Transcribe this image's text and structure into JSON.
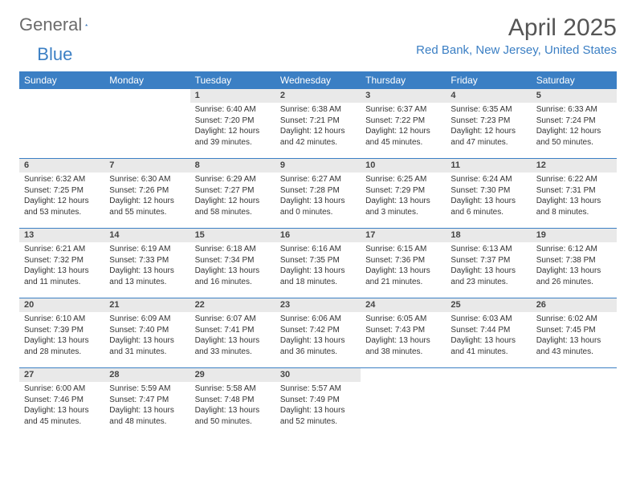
{
  "brand": {
    "word1": "General",
    "word2": "Blue"
  },
  "title": "April 2025",
  "location": "Red Bank, New Jersey, United States",
  "colors": {
    "header_bg": "#3b7fc4",
    "header_text": "#ffffff",
    "daynum_bg": "#e9e9e9",
    "week_border": "#3b7fc4",
    "title_color": "#555555",
    "location_color": "#3b7fc4",
    "body_text": "#333333"
  },
  "days_of_week": [
    "Sunday",
    "Monday",
    "Tuesday",
    "Wednesday",
    "Thursday",
    "Friday",
    "Saturday"
  ],
  "weeks": [
    [
      {
        "num": "",
        "sunrise": "",
        "sunset": "",
        "daylight": ""
      },
      {
        "num": "",
        "sunrise": "",
        "sunset": "",
        "daylight": ""
      },
      {
        "num": "1",
        "sunrise": "Sunrise: 6:40 AM",
        "sunset": "Sunset: 7:20 PM",
        "daylight": "Daylight: 12 hours and 39 minutes."
      },
      {
        "num": "2",
        "sunrise": "Sunrise: 6:38 AM",
        "sunset": "Sunset: 7:21 PM",
        "daylight": "Daylight: 12 hours and 42 minutes."
      },
      {
        "num": "3",
        "sunrise": "Sunrise: 6:37 AM",
        "sunset": "Sunset: 7:22 PM",
        "daylight": "Daylight: 12 hours and 45 minutes."
      },
      {
        "num": "4",
        "sunrise": "Sunrise: 6:35 AM",
        "sunset": "Sunset: 7:23 PM",
        "daylight": "Daylight: 12 hours and 47 minutes."
      },
      {
        "num": "5",
        "sunrise": "Sunrise: 6:33 AM",
        "sunset": "Sunset: 7:24 PM",
        "daylight": "Daylight: 12 hours and 50 minutes."
      }
    ],
    [
      {
        "num": "6",
        "sunrise": "Sunrise: 6:32 AM",
        "sunset": "Sunset: 7:25 PM",
        "daylight": "Daylight: 12 hours and 53 minutes."
      },
      {
        "num": "7",
        "sunrise": "Sunrise: 6:30 AM",
        "sunset": "Sunset: 7:26 PM",
        "daylight": "Daylight: 12 hours and 55 minutes."
      },
      {
        "num": "8",
        "sunrise": "Sunrise: 6:29 AM",
        "sunset": "Sunset: 7:27 PM",
        "daylight": "Daylight: 12 hours and 58 minutes."
      },
      {
        "num": "9",
        "sunrise": "Sunrise: 6:27 AM",
        "sunset": "Sunset: 7:28 PM",
        "daylight": "Daylight: 13 hours and 0 minutes."
      },
      {
        "num": "10",
        "sunrise": "Sunrise: 6:25 AM",
        "sunset": "Sunset: 7:29 PM",
        "daylight": "Daylight: 13 hours and 3 minutes."
      },
      {
        "num": "11",
        "sunrise": "Sunrise: 6:24 AM",
        "sunset": "Sunset: 7:30 PM",
        "daylight": "Daylight: 13 hours and 6 minutes."
      },
      {
        "num": "12",
        "sunrise": "Sunrise: 6:22 AM",
        "sunset": "Sunset: 7:31 PM",
        "daylight": "Daylight: 13 hours and 8 minutes."
      }
    ],
    [
      {
        "num": "13",
        "sunrise": "Sunrise: 6:21 AM",
        "sunset": "Sunset: 7:32 PM",
        "daylight": "Daylight: 13 hours and 11 minutes."
      },
      {
        "num": "14",
        "sunrise": "Sunrise: 6:19 AM",
        "sunset": "Sunset: 7:33 PM",
        "daylight": "Daylight: 13 hours and 13 minutes."
      },
      {
        "num": "15",
        "sunrise": "Sunrise: 6:18 AM",
        "sunset": "Sunset: 7:34 PM",
        "daylight": "Daylight: 13 hours and 16 minutes."
      },
      {
        "num": "16",
        "sunrise": "Sunrise: 6:16 AM",
        "sunset": "Sunset: 7:35 PM",
        "daylight": "Daylight: 13 hours and 18 minutes."
      },
      {
        "num": "17",
        "sunrise": "Sunrise: 6:15 AM",
        "sunset": "Sunset: 7:36 PM",
        "daylight": "Daylight: 13 hours and 21 minutes."
      },
      {
        "num": "18",
        "sunrise": "Sunrise: 6:13 AM",
        "sunset": "Sunset: 7:37 PM",
        "daylight": "Daylight: 13 hours and 23 minutes."
      },
      {
        "num": "19",
        "sunrise": "Sunrise: 6:12 AM",
        "sunset": "Sunset: 7:38 PM",
        "daylight": "Daylight: 13 hours and 26 minutes."
      }
    ],
    [
      {
        "num": "20",
        "sunrise": "Sunrise: 6:10 AM",
        "sunset": "Sunset: 7:39 PM",
        "daylight": "Daylight: 13 hours and 28 minutes."
      },
      {
        "num": "21",
        "sunrise": "Sunrise: 6:09 AM",
        "sunset": "Sunset: 7:40 PM",
        "daylight": "Daylight: 13 hours and 31 minutes."
      },
      {
        "num": "22",
        "sunrise": "Sunrise: 6:07 AM",
        "sunset": "Sunset: 7:41 PM",
        "daylight": "Daylight: 13 hours and 33 minutes."
      },
      {
        "num": "23",
        "sunrise": "Sunrise: 6:06 AM",
        "sunset": "Sunset: 7:42 PM",
        "daylight": "Daylight: 13 hours and 36 minutes."
      },
      {
        "num": "24",
        "sunrise": "Sunrise: 6:05 AM",
        "sunset": "Sunset: 7:43 PM",
        "daylight": "Daylight: 13 hours and 38 minutes."
      },
      {
        "num": "25",
        "sunrise": "Sunrise: 6:03 AM",
        "sunset": "Sunset: 7:44 PM",
        "daylight": "Daylight: 13 hours and 41 minutes."
      },
      {
        "num": "26",
        "sunrise": "Sunrise: 6:02 AM",
        "sunset": "Sunset: 7:45 PM",
        "daylight": "Daylight: 13 hours and 43 minutes."
      }
    ],
    [
      {
        "num": "27",
        "sunrise": "Sunrise: 6:00 AM",
        "sunset": "Sunset: 7:46 PM",
        "daylight": "Daylight: 13 hours and 45 minutes."
      },
      {
        "num": "28",
        "sunrise": "Sunrise: 5:59 AM",
        "sunset": "Sunset: 7:47 PM",
        "daylight": "Daylight: 13 hours and 48 minutes."
      },
      {
        "num": "29",
        "sunrise": "Sunrise: 5:58 AM",
        "sunset": "Sunset: 7:48 PM",
        "daylight": "Daylight: 13 hours and 50 minutes."
      },
      {
        "num": "30",
        "sunrise": "Sunrise: 5:57 AM",
        "sunset": "Sunset: 7:49 PM",
        "daylight": "Daylight: 13 hours and 52 minutes."
      },
      {
        "num": "",
        "sunrise": "",
        "sunset": "",
        "daylight": ""
      },
      {
        "num": "",
        "sunrise": "",
        "sunset": "",
        "daylight": ""
      },
      {
        "num": "",
        "sunrise": "",
        "sunset": "",
        "daylight": ""
      }
    ]
  ]
}
